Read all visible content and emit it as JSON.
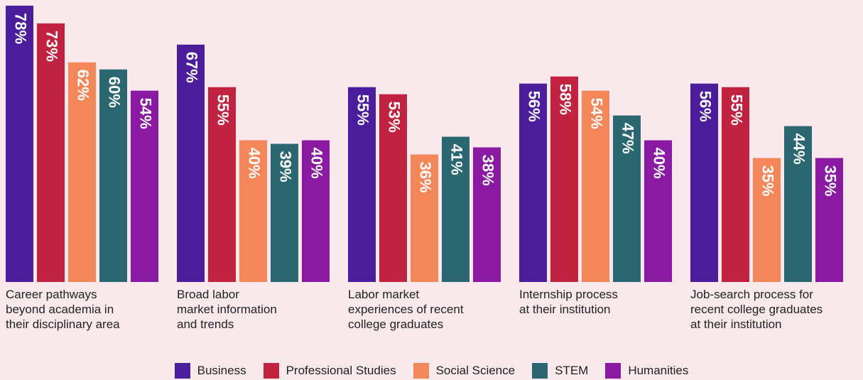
{
  "chart_data": {
    "type": "bar",
    "categories": [
      "Career pathways\nbeyond academia in\ntheir disciplinary area",
      "Broad labor\nmarket information\nand trends",
      "Labor market\nexperiences of recent\ncollege graduates",
      "Internship process\nat their institution",
      "Job-search process for\nrecent college graduates\nat their institution"
    ],
    "series": [
      {
        "name": "Business",
        "color": "#4b1c9b",
        "values": [
          78,
          67,
          55,
          56,
          56
        ],
        "value_labels": [
          "78%",
          "67%",
          "55%",
          "56%",
          "56%"
        ]
      },
      {
        "name": "Professional Studies",
        "color": "#c0223f",
        "values": [
          73,
          55,
          53,
          58,
          55
        ],
        "value_labels": [
          "73%",
          "55%",
          "53%",
          "58%",
          "55%"
        ]
      },
      {
        "name": "Social Science",
        "color": "#f4875a",
        "values": [
          62,
          40,
          36,
          54,
          35
        ],
        "value_labels": [
          "62%",
          "40%",
          "36%",
          "54%",
          "35%"
        ]
      },
      {
        "name": "STEM",
        "color": "#2b6770",
        "values": [
          60,
          39,
          41,
          47,
          44
        ],
        "value_labels": [
          "60%",
          "39%",
          "41%",
          "47%",
          "44%"
        ]
      },
      {
        "name": "Humanities",
        "color": "#8b1aa3",
        "values": [
          54,
          40,
          38,
          40,
          35
        ],
        "value_labels": [
          "54%",
          "40%",
          "38%",
          "40%",
          "35%"
        ]
      }
    ],
    "ylim": [
      0,
      80
    ],
    "grid": false,
    "legend": "bottom"
  }
}
